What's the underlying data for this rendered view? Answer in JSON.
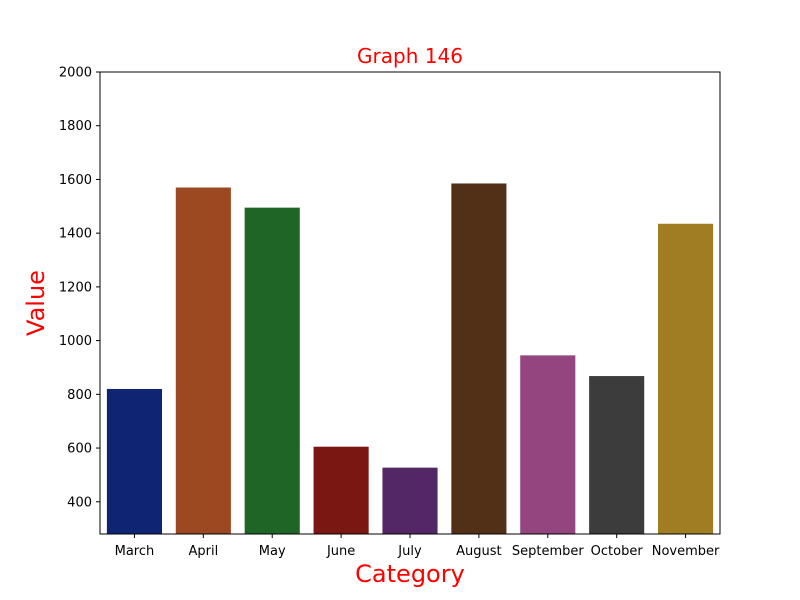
{
  "chart_data": {
    "type": "bar",
    "title": "Graph 146",
    "xlabel": "Category",
    "ylabel": "Value",
    "categories": [
      "March",
      "April",
      "May",
      "June",
      "July",
      "August",
      "September",
      "October",
      "November"
    ],
    "values": [
      820,
      1570,
      1495,
      605,
      527,
      1585,
      945,
      868,
      1435
    ],
    "colors": [
      "#0f2473",
      "#9c4820",
      "#1f6626",
      "#7a1713",
      "#532766",
      "#523017",
      "#94447f",
      "#3c3c3c",
      "#a07d22"
    ],
    "ylim": [
      280,
      2000
    ],
    "yticks": [
      400,
      600,
      800,
      1000,
      1200,
      1400,
      1600,
      1800,
      2000
    ],
    "grid": false,
    "legend": "none"
  }
}
